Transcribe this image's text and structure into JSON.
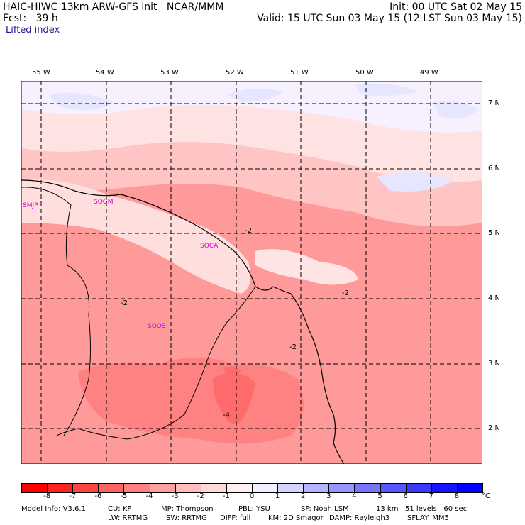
{
  "header": {
    "left_line1": "HAIC-HIWC 13km ARW-GFS init   NCAR/MMM",
    "left_line2": "Fcst:   39 h",
    "right_line1": "Init: 00 UTC Sat 02 May 15",
    "right_line2": "Valid: 15 UTC Sun 03 May 15 (12 LST Sun 03 May 15)",
    "field_name": "Lifted index"
  },
  "map": {
    "longitude_labels": [
      "55 W",
      "54 W",
      "53 W",
      "52 W",
      "51 W",
      "50 W",
      "49 W"
    ],
    "latitude_labels": [
      "7 N",
      "6 N",
      "5 N",
      "4 N",
      "3 N",
      "2 N"
    ],
    "stations": [
      "SMJP",
      "SOGM",
      "SOCA",
      "SOOS"
    ],
    "contour_labels": [
      "-2",
      "-2",
      "-2",
      "-2",
      "-4"
    ]
  },
  "colorbar": {
    "tick_labels": [
      "-8",
      "-7",
      "-6",
      "-5",
      "-4",
      "-3",
      "-2",
      "-1",
      "0",
      "1",
      "2",
      "3",
      "4",
      "5",
      "6",
      "7",
      "8"
    ],
    "unit": "°C",
    "colors": [
      "#ff0000",
      "#ff2424",
      "#ff4444",
      "#ff6464",
      "#ff8080",
      "#ffa0a0",
      "#ffbcbc",
      "#ffd8d8",
      "#fff0f0",
      "#f0f0ff",
      "#d4d4ff",
      "#b4b4ff",
      "#9696ff",
      "#7676ff",
      "#5656ff",
      "#3838ff",
      "#1414ff",
      "#0000ff"
    ]
  },
  "footer": {
    "line1_col1": "Model Info: V3.6.1",
    "line1_col2": "CU: KF",
    "line1_col3": "MP: Thompson",
    "line1_col4": "PBL: YSU",
    "line1_col5": "SF: Noah LSM",
    "line1_col6": "13 km   51 levels   60 sec",
    "line2_col1": "LW: RRTMG",
    "line2_col2": "SW: RRTMG",
    "line2_col3": "DIFF: full",
    "line2_col4": "KM: 2D Smagor",
    "line2_col5": "DAMP: Rayleigh3",
    "line2_col6": "SFLAY: MM5"
  }
}
